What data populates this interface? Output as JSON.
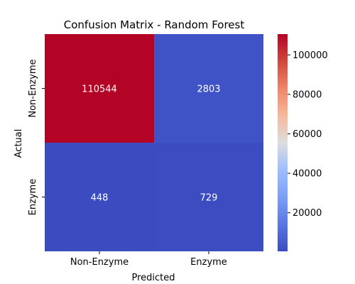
{
  "chart_data": {
    "type": "heatmap",
    "title": "Confusion Matrix - Random Forest",
    "xlabel": "Predicted",
    "ylabel": "Actual",
    "x_categories": [
      "Non-Enzyme",
      "Enzyme"
    ],
    "y_categories": [
      "Non-Enzyme",
      "Enzyme"
    ],
    "values": [
      [
        110544,
        2803
      ],
      [
        448,
        729
      ]
    ],
    "annotations": [
      [
        "110544",
        "2803"
      ],
      [
        "448",
        "729"
      ]
    ],
    "colormap": "coolwarm",
    "vmin": 448,
    "vmax": 110544,
    "colorbar_ticks": [
      20000,
      40000,
      60000,
      80000,
      100000
    ],
    "colorbar_tick_labels": [
      "20000",
      "40000",
      "60000",
      "80000",
      "100000"
    ],
    "colors": {
      "low": "#3b4cc0",
      "mid": "#dddddd",
      "high": "#b40426"
    }
  }
}
